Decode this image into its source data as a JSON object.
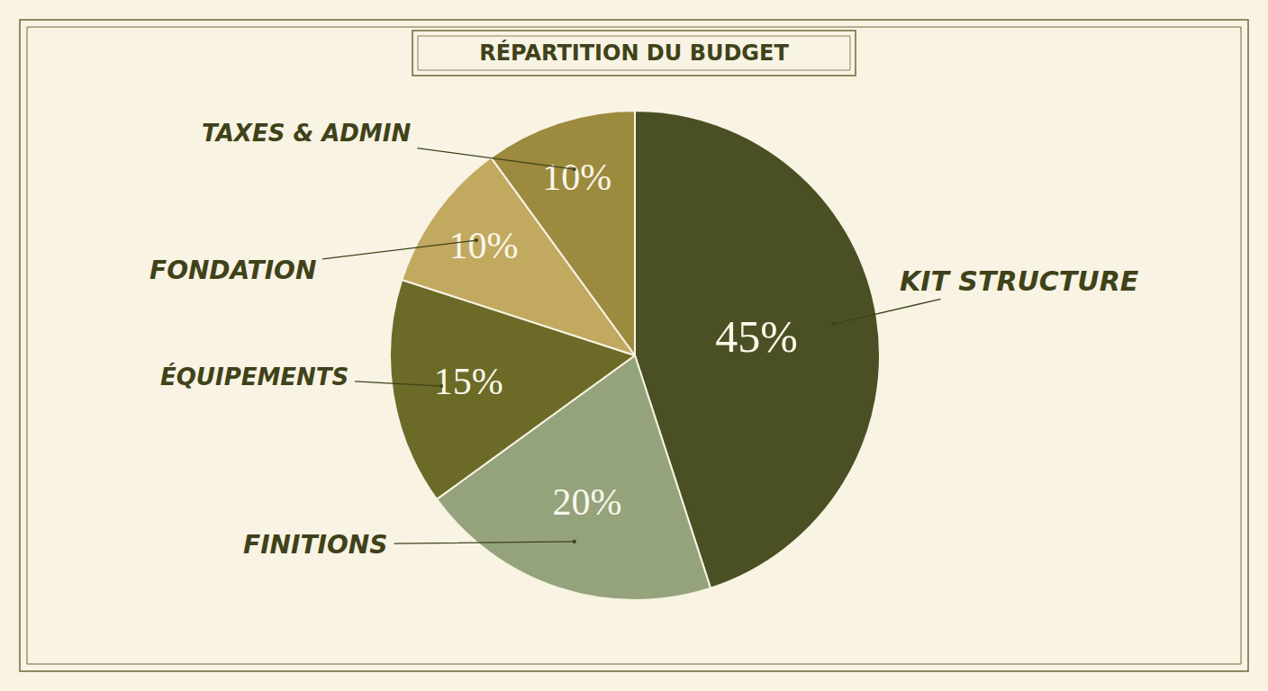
{
  "chart_data": {
    "type": "pie",
    "title": "RÉPARTITION DU BUDGET",
    "categories": [
      "KIT STRUCTURE",
      "FINITIONS",
      "ÉQUIPEMENTS",
      "FONDATION",
      "TAXES & ADMIN"
    ],
    "values": [
      45,
      20,
      15,
      10,
      10
    ],
    "value_labels": [
      "45%",
      "20%",
      "15%",
      "10%",
      "10%"
    ],
    "colors": [
      "#4b5024",
      "#94a37c",
      "#6c6a27",
      "#c2a960",
      "#9c8a3f"
    ],
    "data_labels": true
  }
}
